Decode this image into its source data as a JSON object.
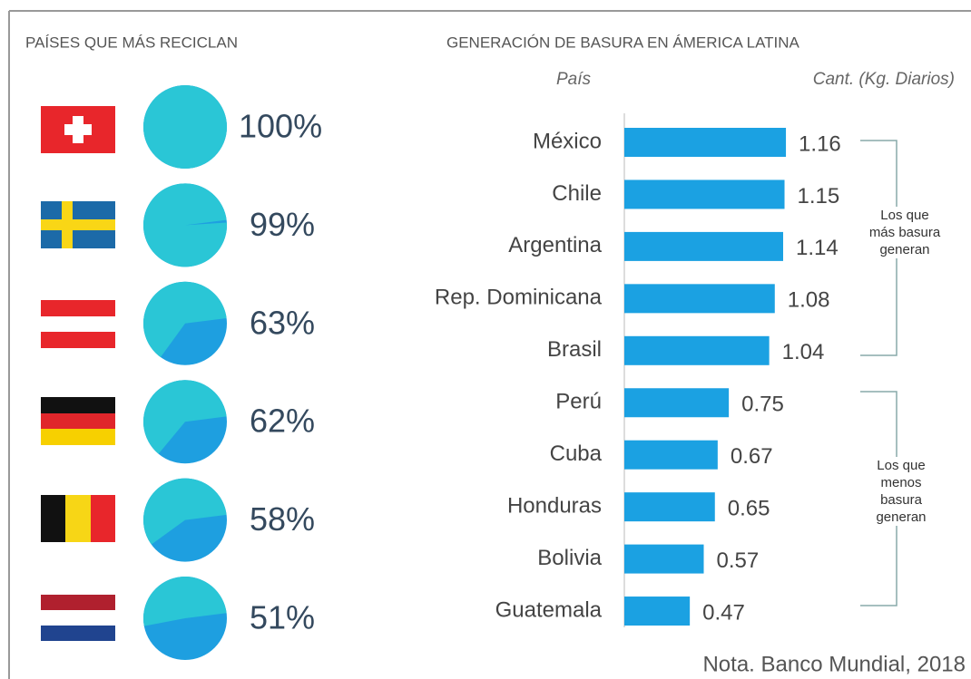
{
  "chart_data": [
    {
      "type": "pie",
      "title": "PAÍSES QUE MÁS RECICLAN",
      "values": [
        100,
        99,
        63,
        62,
        58,
        51
      ],
      "value_labels": [
        "100%",
        "99%",
        "63%",
        "62%",
        "58%",
        "51%"
      ],
      "colors": [
        "#2ac6d6",
        "#1e9fe0"
      ]
    },
    {
      "type": "bar",
      "title": "GENERACIÓN DE BASURA EN ÁMERICA LATINA",
      "ylabel": "País",
      "xlabel": "Cant. (Kg. Diarios)",
      "categories": [
        "México",
        "Chile",
        "Argentina",
        "Rep. Dominicana",
        "Brasil",
        "Perú",
        "Cuba",
        "Honduras",
        "Bolivia",
        "Guatemala"
      ],
      "values": [
        1.16,
        1.15,
        1.14,
        1.08,
        1.04,
        0.75,
        0.67,
        0.65,
        0.57,
        0.47
      ],
      "color": "#1ba1e2",
      "annotations": [
        "Los que más basura generan",
        "Los que menos basura generan"
      ],
      "note": "Nota. Banco Mundial, 2018"
    }
  ]
}
